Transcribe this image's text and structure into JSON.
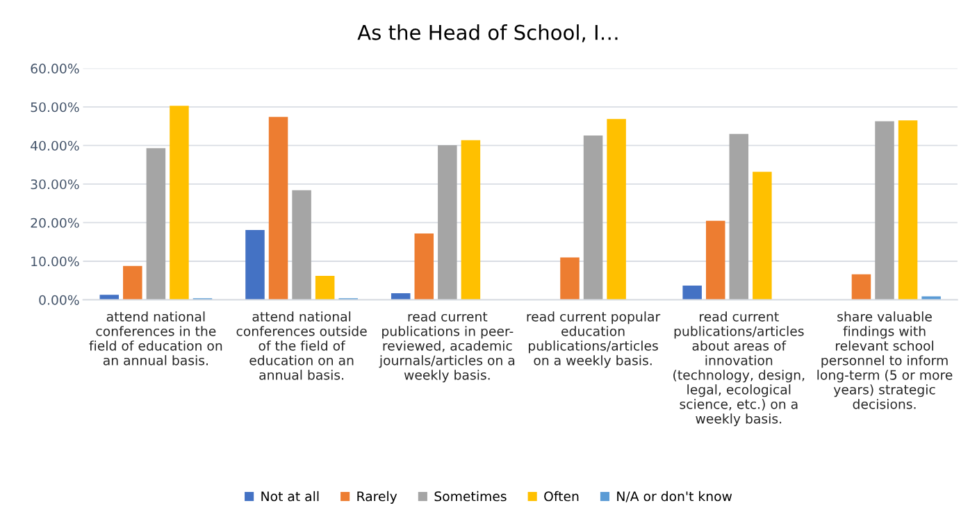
{
  "chart_data": {
    "type": "bar",
    "title": "As the Head of School, I…",
    "categories": [
      "attend national\nconferences in the\nfield of education on\nan annual basis.",
      "attend national\nconferences outside\nof the field of\neducation on an\nannual basis.",
      "read current\npublications in peer-\nreviewed, academic\njournals/articles on a\nweekly basis.",
      "read current popular\neducation\npublications/articles\non a weekly basis.",
      "read current\npublications/articles\nabout areas of\ninnovation\n(technology, design,\nlegal, ecological\nscience, etc.) on a\nweekly basis.",
      "share valuable\nfindings with\nrelevant school\npersonnel to inform\nlong-term (5 or more\nyears) strategic\ndecisions."
    ],
    "series": [
      {
        "name": "Not at all",
        "color": "#4472c4",
        "values": [
          1.3,
          18.1,
          1.7,
          0,
          3.7,
          0
        ]
      },
      {
        "name": "Rarely",
        "color": "#ed7d31",
        "values": [
          8.8,
          47.4,
          17.2,
          11.0,
          20.5,
          6.6
        ]
      },
      {
        "name": "Sometimes",
        "color": "#a5a5a5",
        "values": [
          39.3,
          28.4,
          40.1,
          42.6,
          43.0,
          46.3
        ]
      },
      {
        "name": "Often",
        "color": "#ffc000",
        "values": [
          50.3,
          6.2,
          41.4,
          46.9,
          33.2,
          46.5
        ]
      },
      {
        "name": "N/A or don't know",
        "color": "#5b9bd5",
        "values": [
          0.4,
          0.4,
          0,
          0,
          0,
          0.9
        ]
      }
    ],
    "ylim": [
      0,
      60
    ],
    "yticks": [
      {
        "value": 0,
        "label": "0.00%"
      },
      {
        "value": 10,
        "label": "10.00%"
      },
      {
        "value": 20,
        "label": "20.00%"
      },
      {
        "value": 30,
        "label": "30.00%"
      },
      {
        "value": 40,
        "label": "40.00%"
      },
      {
        "value": 50,
        "label": "50.00%"
      },
      {
        "value": 60,
        "label": "60.00%"
      }
    ],
    "grid": "y",
    "legend": "bottom"
  }
}
